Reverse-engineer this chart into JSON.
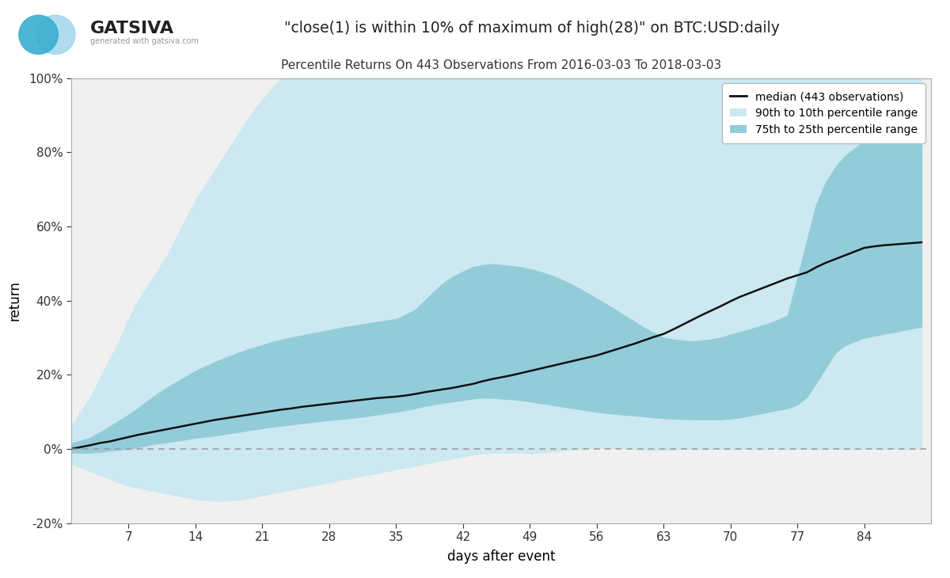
{
  "title_main": "\"close(1) is within 10% of maximum of high(28)\" on BTC:USD:daily",
  "title_sub": "Percentile Returns On 443 Observations From 2016-03-03 To 2018-03-03",
  "xlabel": "days after event",
  "ylabel": "return",
  "xlim": [
    1,
    91
  ],
  "ylim": [
    -0.2,
    1.0
  ],
  "xticks": [
    7,
    14,
    21,
    28,
    35,
    42,
    49,
    56,
    63,
    70,
    77,
    84
  ],
  "yticks": [
    -0.2,
    0.0,
    0.2,
    0.4,
    0.6,
    0.8,
    1.0
  ],
  "yticklabels": [
    "-20%",
    "0%",
    "20%",
    "40%",
    "60%",
    "80%",
    "100%"
  ],
  "color_light": "#cce8f0",
  "color_medium": "#93ccd9",
  "color_median_line": "#111111",
  "background_color": "#f0f0f0",
  "days": [
    1,
    2,
    3,
    4,
    5,
    6,
    7,
    8,
    9,
    10,
    11,
    12,
    13,
    14,
    15,
    16,
    17,
    18,
    19,
    20,
    21,
    22,
    23,
    24,
    25,
    26,
    27,
    28,
    29,
    30,
    31,
    32,
    33,
    34,
    35,
    36,
    37,
    38,
    39,
    40,
    41,
    42,
    43,
    44,
    45,
    46,
    47,
    48,
    49,
    50,
    51,
    52,
    53,
    54,
    55,
    56,
    57,
    58,
    59,
    60,
    61,
    62,
    63,
    64,
    65,
    66,
    67,
    68,
    69,
    70,
    71,
    72,
    73,
    74,
    75,
    76,
    77,
    78,
    79,
    80,
    81,
    82,
    83,
    84,
    85,
    86,
    87,
    88,
    89,
    90
  ],
  "median": [
    0.0,
    0.005,
    0.01,
    0.016,
    0.02,
    0.026,
    0.032,
    0.038,
    0.043,
    0.048,
    0.053,
    0.058,
    0.063,
    0.068,
    0.073,
    0.078,
    0.082,
    0.086,
    0.09,
    0.094,
    0.098,
    0.102,
    0.106,
    0.109,
    0.113,
    0.116,
    0.119,
    0.122,
    0.125,
    0.128,
    0.131,
    0.134,
    0.137,
    0.139,
    0.141,
    0.144,
    0.148,
    0.153,
    0.157,
    0.161,
    0.165,
    0.17,
    0.175,
    0.182,
    0.188,
    0.193,
    0.198,
    0.204,
    0.21,
    0.216,
    0.222,
    0.228,
    0.234,
    0.24,
    0.246,
    0.252,
    0.26,
    0.268,
    0.276,
    0.284,
    0.293,
    0.302,
    0.31,
    0.322,
    0.335,
    0.348,
    0.361,
    0.373,
    0.385,
    0.398,
    0.41,
    0.42,
    0.43,
    0.44,
    0.45,
    0.46,
    0.468,
    0.476,
    0.49,
    0.502,
    0.512,
    0.522,
    0.532,
    0.542,
    0.546,
    0.549,
    0.551,
    0.553,
    0.555,
    0.557
  ],
  "p10": [
    -0.04,
    -0.05,
    -0.06,
    -0.07,
    -0.08,
    -0.09,
    -0.1,
    -0.105,
    -0.11,
    -0.115,
    -0.12,
    -0.125,
    -0.13,
    -0.135,
    -0.138,
    -0.14,
    -0.14,
    -0.138,
    -0.135,
    -0.13,
    -0.125,
    -0.12,
    -0.115,
    -0.11,
    -0.105,
    -0.1,
    -0.095,
    -0.09,
    -0.085,
    -0.08,
    -0.075,
    -0.07,
    -0.065,
    -0.06,
    -0.055,
    -0.05,
    -0.045,
    -0.04,
    -0.035,
    -0.03,
    -0.025,
    -0.02,
    -0.015,
    -0.012,
    -0.01,
    -0.01,
    -0.01,
    -0.01,
    -0.012,
    -0.01,
    -0.008,
    -0.005,
    -0.002,
    0.0,
    0.002,
    0.003,
    0.003,
    0.003,
    0.002,
    0.0,
    -0.002,
    -0.003,
    -0.003,
    -0.002,
    0.0,
    0.0,
    0.0,
    0.0,
    0.0,
    0.0,
    0.0,
    0.0,
    0.0,
    0.0,
    0.0,
    0.0,
    0.0,
    0.0,
    0.0,
    0.0,
    0.0,
    0.0,
    0.0,
    0.0,
    0.0,
    0.0,
    0.0,
    0.0,
    0.0,
    0.0
  ],
  "p90": [
    0.06,
    0.1,
    0.14,
    0.19,
    0.24,
    0.29,
    0.35,
    0.4,
    0.44,
    0.48,
    0.52,
    0.57,
    0.62,
    0.67,
    0.71,
    0.75,
    0.79,
    0.83,
    0.87,
    0.91,
    0.94,
    0.97,
    1.0,
    1.0,
    1.0,
    1.0,
    1.0,
    1.0,
    1.0,
    1.0,
    1.0,
    1.0,
    1.0,
    1.0,
    1.0,
    1.0,
    1.0,
    1.0,
    1.0,
    1.0,
    1.0,
    1.0,
    1.0,
    1.0,
    1.0,
    1.0,
    1.0,
    1.0,
    1.0,
    1.0,
    1.0,
    1.0,
    1.0,
    1.0,
    1.0,
    1.0,
    1.0,
    1.0,
    1.0,
    1.0,
    1.0,
    1.0,
    1.0,
    1.0,
    1.0,
    1.0,
    1.0,
    1.0,
    1.0,
    1.0,
    1.0,
    1.0,
    1.0,
    1.0,
    1.0,
    1.0,
    1.0,
    1.0,
    1.0,
    1.0,
    1.0,
    1.0,
    1.0,
    1.0,
    1.0,
    1.0,
    1.0,
    1.0,
    1.0,
    1.0
  ],
  "p25": [
    -0.01,
    -0.01,
    -0.01,
    -0.008,
    -0.005,
    -0.002,
    0.0,
    0.005,
    0.01,
    0.015,
    0.018,
    0.022,
    0.026,
    0.03,
    0.033,
    0.036,
    0.04,
    0.044,
    0.048,
    0.052,
    0.056,
    0.06,
    0.063,
    0.066,
    0.069,
    0.072,
    0.075,
    0.078,
    0.08,
    0.083,
    0.086,
    0.089,
    0.093,
    0.097,
    0.1,
    0.105,
    0.11,
    0.116,
    0.12,
    0.125,
    0.128,
    0.132,
    0.136,
    0.138,
    0.138,
    0.136,
    0.134,
    0.132,
    0.128,
    0.124,
    0.12,
    0.116,
    0.112,
    0.108,
    0.104,
    0.1,
    0.097,
    0.095,
    0.092,
    0.09,
    0.088,
    0.085,
    0.083,
    0.082,
    0.081,
    0.08,
    0.08,
    0.08,
    0.08,
    0.082,
    0.085,
    0.09,
    0.095,
    0.1,
    0.105,
    0.11,
    0.12,
    0.14,
    0.18,
    0.22,
    0.26,
    0.28,
    0.29,
    0.3,
    0.305,
    0.31,
    0.315,
    0.32,
    0.325,
    0.33
  ],
  "p75": [
    0.015,
    0.022,
    0.03,
    0.045,
    0.06,
    0.076,
    0.092,
    0.11,
    0.13,
    0.148,
    0.165,
    0.18,
    0.195,
    0.21,
    0.222,
    0.234,
    0.244,
    0.254,
    0.264,
    0.272,
    0.28,
    0.288,
    0.294,
    0.3,
    0.305,
    0.31,
    0.315,
    0.32,
    0.325,
    0.33,
    0.334,
    0.338,
    0.342,
    0.346,
    0.35,
    0.362,
    0.375,
    0.4,
    0.425,
    0.448,
    0.465,
    0.478,
    0.49,
    0.495,
    0.498,
    0.496,
    0.493,
    0.49,
    0.485,
    0.478,
    0.47,
    0.46,
    0.448,
    0.435,
    0.42,
    0.405,
    0.39,
    0.375,
    0.358,
    0.342,
    0.326,
    0.312,
    0.3,
    0.295,
    0.292,
    0.29,
    0.292,
    0.295,
    0.3,
    0.308,
    0.315,
    0.322,
    0.33,
    0.338,
    0.348,
    0.36,
    0.46,
    0.56,
    0.66,
    0.72,
    0.76,
    0.79,
    0.81,
    0.83,
    0.845,
    0.858,
    0.868,
    0.878,
    0.888,
    0.898
  ]
}
